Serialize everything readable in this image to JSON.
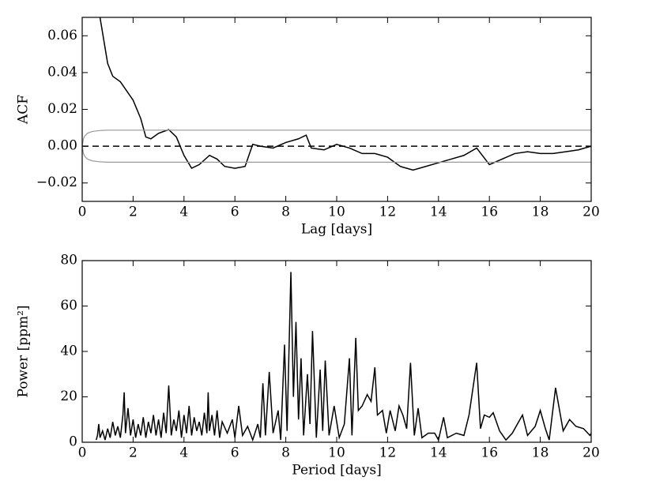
{
  "chart_data": [
    {
      "type": "line",
      "xlabel": "Lag [days]",
      "ylabel": "ACF",
      "xlim": [
        0,
        20
      ],
      "ylim": [
        -0.03,
        0.07
      ],
      "xticks": [
        0,
        2,
        4,
        6,
        8,
        10,
        12,
        14,
        16,
        18,
        20
      ],
      "yticks": [
        {
          "value": -0.02,
          "label": "−0.02"
        },
        {
          "value": 0,
          "label": "0.00"
        },
        0.02,
        0.04,
        0.06
      ],
      "hline": {
        "y": 0,
        "dashed": true,
        "color": "#000000"
      },
      "series": [
        {
          "color": "#000000",
          "x": [
            0.7,
            1.0,
            1.2,
            1.5,
            2.0,
            2.3,
            2.5,
            2.7,
            3.0,
            3.4,
            3.7,
            4.0,
            4.3,
            4.6,
            5.0,
            5.3,
            5.6,
            6.0,
            6.4,
            6.7,
            7.0,
            7.5,
            8.0,
            8.5,
            8.8,
            9.0,
            9.5,
            10.0,
            10.5,
            11.0,
            11.5,
            12.0,
            12.5,
            13.0,
            13.5,
            14.0,
            14.5,
            15.0,
            15.5,
            16.0,
            16.5,
            17.0,
            17.5,
            18.0,
            18.5,
            19.0,
            19.5,
            20.0
          ],
          "values": [
            0.07,
            0.045,
            0.038,
            0.035,
            0.025,
            0.015,
            0.005,
            0.004,
            0.007,
            0.009,
            0.005,
            -0.005,
            -0.012,
            -0.01,
            -0.005,
            -0.007,
            -0.011,
            -0.012,
            -0.011,
            0.001,
            0.0,
            -0.001,
            0.002,
            0.004,
            0.006,
            -0.001,
            -0.002,
            0.001,
            -0.001,
            -0.004,
            -0.004,
            -0.006,
            -0.011,
            -0.013,
            -0.011,
            -0.009,
            -0.007,
            -0.005,
            -0.001,
            -0.01,
            -0.007,
            -0.004,
            -0.003,
            -0.004,
            -0.004,
            -0.003,
            -0.002,
            0.0
          ]
        },
        {
          "color": "#999999",
          "x": [
            0,
            0.05,
            0.1,
            0.2,
            0.4,
            0.7,
            1.0,
            20
          ],
          "values": [
            0.0,
            0.004,
            0.0055,
            0.007,
            0.008,
            0.0085,
            0.0087,
            0.0087
          ]
        },
        {
          "color": "#999999",
          "x": [
            0,
            0.05,
            0.1,
            0.2,
            0.4,
            0.7,
            1.0,
            20
          ],
          "values": [
            0.0,
            -0.004,
            -0.0055,
            -0.007,
            -0.008,
            -0.0085,
            -0.0087,
            -0.0087
          ]
        }
      ]
    },
    {
      "type": "line",
      "xlabel": "Period [days]",
      "ylabel": "Power [ppm²]",
      "xlim": [
        0,
        20
      ],
      "ylim": [
        0,
        80
      ],
      "xticks": [
        0,
        2,
        4,
        6,
        8,
        10,
        12,
        14,
        16,
        18,
        20
      ],
      "yticks": [
        0,
        20,
        40,
        60,
        80
      ],
      "series": [
        {
          "color": "#000000",
          "x": [
            0.55,
            0.6,
            0.65,
            0.7,
            0.8,
            0.9,
            1.0,
            1.1,
            1.2,
            1.3,
            1.4,
            1.5,
            1.6,
            1.65,
            1.7,
            1.8,
            1.9,
            2.0,
            2.1,
            2.2,
            2.3,
            2.4,
            2.5,
            2.6,
            2.7,
            2.8,
            2.9,
            3.0,
            3.1,
            3.2,
            3.3,
            3.4,
            3.5,
            3.6,
            3.7,
            3.8,
            3.9,
            4.0,
            4.1,
            4.2,
            4.3,
            4.4,
            4.5,
            4.6,
            4.7,
            4.8,
            4.9,
            4.95,
            5.0,
            5.1,
            5.2,
            5.3,
            5.4,
            5.5,
            5.7,
            5.9,
            6.0,
            6.15,
            6.3,
            6.5,
            6.7,
            6.9,
            7.0,
            7.1,
            7.2,
            7.35,
            7.5,
            7.7,
            7.8,
            7.95,
            8.05,
            8.2,
            8.3,
            8.4,
            8.5,
            8.6,
            8.7,
            8.85,
            8.95,
            9.05,
            9.2,
            9.35,
            9.45,
            9.55,
            9.7,
            9.9,
            10.1,
            10.3,
            10.5,
            10.6,
            10.75,
            10.85,
            11.0,
            11.2,
            11.35,
            11.5,
            11.6,
            11.8,
            11.95,
            12.1,
            12.3,
            12.45,
            12.6,
            12.75,
            12.9,
            13.05,
            13.2,
            13.35,
            13.6,
            13.85,
            14.0,
            14.2,
            14.35,
            14.7,
            15.0,
            15.2,
            15.5,
            15.65,
            15.8,
            16.0,
            16.15,
            16.4,
            16.65,
            16.9,
            17.3,
            17.5,
            17.8,
            18.0,
            18.2,
            18.35,
            18.6,
            18.9,
            19.15,
            19.4,
            19.7,
            19.95,
            20.0
          ],
          "values": [
            1,
            3,
            8,
            2,
            5,
            1,
            6,
            2,
            9,
            3,
            7,
            2,
            12,
            22,
            4,
            15,
            3,
            10,
            2,
            8,
            3,
            11,
            2,
            9,
            4,
            12,
            3,
            10,
            2,
            13,
            4,
            25,
            3,
            10,
            5,
            14,
            2,
            12,
            4,
            16,
            3,
            11,
            5,
            9,
            3,
            13,
            4,
            22,
            5,
            12,
            3,
            14,
            2,
            9,
            4,
            10,
            2,
            16,
            3,
            7,
            1,
            8,
            2,
            26,
            3,
            31,
            4,
            14,
            1,
            43,
            5,
            75,
            20,
            53,
            10,
            37,
            3,
            30,
            8,
            49,
            2,
            32,
            5,
            36,
            3,
            16,
            2,
            8,
            37,
            3,
            46,
            14,
            16,
            21,
            18,
            33,
            12,
            14,
            4,
            14,
            5,
            16,
            12,
            6,
            35,
            3,
            15,
            2,
            4,
            4,
            1,
            11,
            2,
            4,
            3,
            12,
            35,
            6,
            12,
            11,
            13,
            5,
            1,
            4,
            12,
            3,
            7,
            14,
            6,
            1,
            24,
            5,
            10,
            7,
            6,
            3,
            4
          ]
        }
      ]
    }
  ]
}
